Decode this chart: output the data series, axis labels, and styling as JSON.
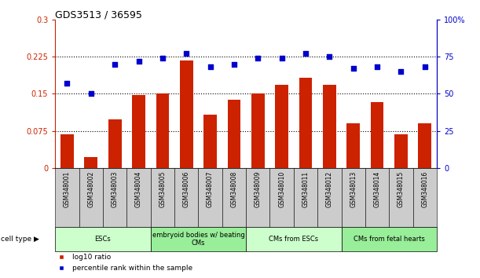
{
  "title": "GDS3513 / 36595",
  "samples": [
    "GSM348001",
    "GSM348002",
    "GSM348003",
    "GSM348004",
    "GSM348005",
    "GSM348006",
    "GSM348007",
    "GSM348008",
    "GSM348009",
    "GSM348010",
    "GSM348011",
    "GSM348012",
    "GSM348013",
    "GSM348014",
    "GSM348015",
    "GSM348016"
  ],
  "log10_ratio": [
    0.068,
    0.022,
    0.098,
    0.148,
    0.15,
    0.218,
    0.108,
    0.138,
    0.15,
    0.168,
    0.183,
    0.168,
    0.09,
    0.133,
    0.068,
    0.09
  ],
  "percentile_rank": [
    57,
    50,
    70,
    72,
    74,
    77,
    68,
    70,
    74,
    74,
    77,
    75,
    67,
    68,
    65,
    68
  ],
  "bar_color": "#cc2200",
  "dot_color": "#0000cc",
  "ylim_left": [
    0,
    0.3
  ],
  "ylim_right": [
    0,
    100
  ],
  "yticks_left": [
    0,
    0.075,
    0.15,
    0.225,
    0.3
  ],
  "ytick_labels_left": [
    "0",
    "0.075",
    "0.15",
    "0.225",
    "0.3"
  ],
  "yticks_right": [
    0,
    25,
    50,
    75,
    100
  ],
  "ytick_labels_right": [
    "0",
    "25",
    "50",
    "75",
    "100%"
  ],
  "hlines": [
    0.075,
    0.15,
    0.225
  ],
  "cell_type_groups": [
    {
      "label": "ESCs",
      "start": 0,
      "end": 3,
      "color": "#ccffcc"
    },
    {
      "label": "embryoid bodies w/ beating\nCMs",
      "start": 4,
      "end": 7,
      "color": "#99ee99"
    },
    {
      "label": "CMs from ESCs",
      "start": 8,
      "end": 11,
      "color": "#ccffcc"
    },
    {
      "label": "CMs from fetal hearts",
      "start": 12,
      "end": 15,
      "color": "#99ee99"
    }
  ],
  "cell_type_label": "cell type",
  "legend_bar_label": "log10 ratio",
  "legend_dot_label": "percentile rank within the sample",
  "tick_area_color": "#cccccc",
  "fig_width": 6.11,
  "fig_height": 3.54,
  "dpi": 100
}
